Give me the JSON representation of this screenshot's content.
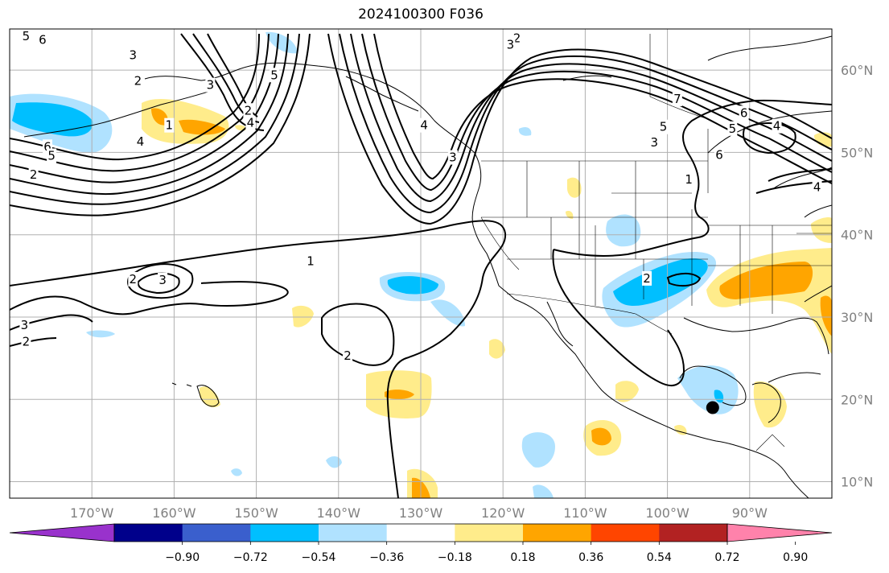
{
  "title": "2024100300 F036",
  "map": {
    "projection": "equirectangular",
    "lon_range": [
      -180,
      -80
    ],
    "lat_range": [
      8,
      65
    ],
    "lon_tick_labels": [
      "170°W",
      "160°W",
      "150°W",
      "140°W",
      "130°W",
      "120°W",
      "110°W",
      "100°W",
      "90°W"
    ],
    "lat_tick_labels": [
      "10°N",
      "20°N",
      "30°N",
      "40°N",
      "50°N",
      "60°N"
    ],
    "grid": true,
    "marker": {
      "name": "point",
      "lon": -94.5,
      "lat": 19.0,
      "color": "#000000"
    }
  },
  "colorbar": {
    "extend": "both",
    "colors": [
      "#9932cc",
      "#00008b",
      "#3a5fcd",
      "#00bfff",
      "#b0e2ff",
      "#ffffff",
      "#ffec8b",
      "#ffa500",
      "#ff4500",
      "#b22222",
      "#ff82ab"
    ],
    "tick_labels": [
      "−0.90",
      "−0.72",
      "−0.54",
      "−0.36",
      "−0.18",
      "0.18",
      "0.36",
      "0.54",
      "0.72",
      "0.90"
    ]
  },
  "contour_labels": [
    {
      "text": "6",
      "lon": -176,
      "lat": 63.7
    },
    {
      "text": "5",
      "lon": -178,
      "lat": 64.1
    },
    {
      "text": "3",
      "lon": -165,
      "lat": 61.8
    },
    {
      "text": "2",
      "lon": -164.4,
      "lat": 58.7
    },
    {
      "text": "1",
      "lon": -160.6,
      "lat": 53.3
    },
    {
      "text": "4",
      "lon": -164.1,
      "lat": 51.3
    },
    {
      "text": "6",
      "lon": -175.4,
      "lat": 50.7
    },
    {
      "text": "5",
      "lon": -174.9,
      "lat": 49.6
    },
    {
      "text": "2",
      "lon": -177.1,
      "lat": 47.3
    },
    {
      "text": "1",
      "lon": -143.4,
      "lat": 36.8
    },
    {
      "text": "2",
      "lon": -165,
      "lat": 34.6
    },
    {
      "text": "3",
      "lon": -161.4,
      "lat": 34.5
    },
    {
      "text": "3",
      "lon": -178.2,
      "lat": 29
    },
    {
      "text": "2",
      "lon": -178,
      "lat": 27
    },
    {
      "text": "2",
      "lon": -138.9,
      "lat": 25.3
    },
    {
      "text": "3",
      "lon": -155.6,
      "lat": 58.2
    },
    {
      "text": "5",
      "lon": -147.8,
      "lat": 59.4
    },
    {
      "text": "2",
      "lon": -151,
      "lat": 55.1
    },
    {
      "text": "4",
      "lon": -150.7,
      "lat": 53.6
    },
    {
      "text": "4",
      "lon": -129.6,
      "lat": 53.3
    },
    {
      "text": "3",
      "lon": -126.1,
      "lat": 49.4
    },
    {
      "text": "2",
      "lon": -118.3,
      "lat": 63.9
    },
    {
      "text": "3",
      "lon": -119.1,
      "lat": 63.1
    },
    {
      "text": "7",
      "lon": -98.8,
      "lat": 56.5
    },
    {
      "text": "5",
      "lon": -100.5,
      "lat": 53.1
    },
    {
      "text": "3",
      "lon": -101.6,
      "lat": 51.2
    },
    {
      "text": "6",
      "lon": -90.7,
      "lat": 54.8
    },
    {
      "text": "5",
      "lon": -92.1,
      "lat": 52.9
    },
    {
      "text": "6",
      "lon": -93.7,
      "lat": 49.7
    },
    {
      "text": "1",
      "lon": -97.4,
      "lat": 46.7
    },
    {
      "text": "4",
      "lon": -86.7,
      "lat": 53.2
    },
    {
      "text": "4",
      "lon": -81.8,
      "lat": 45.8
    },
    {
      "text": "2",
      "lon": -102.5,
      "lat": 34.7
    }
  ]
}
